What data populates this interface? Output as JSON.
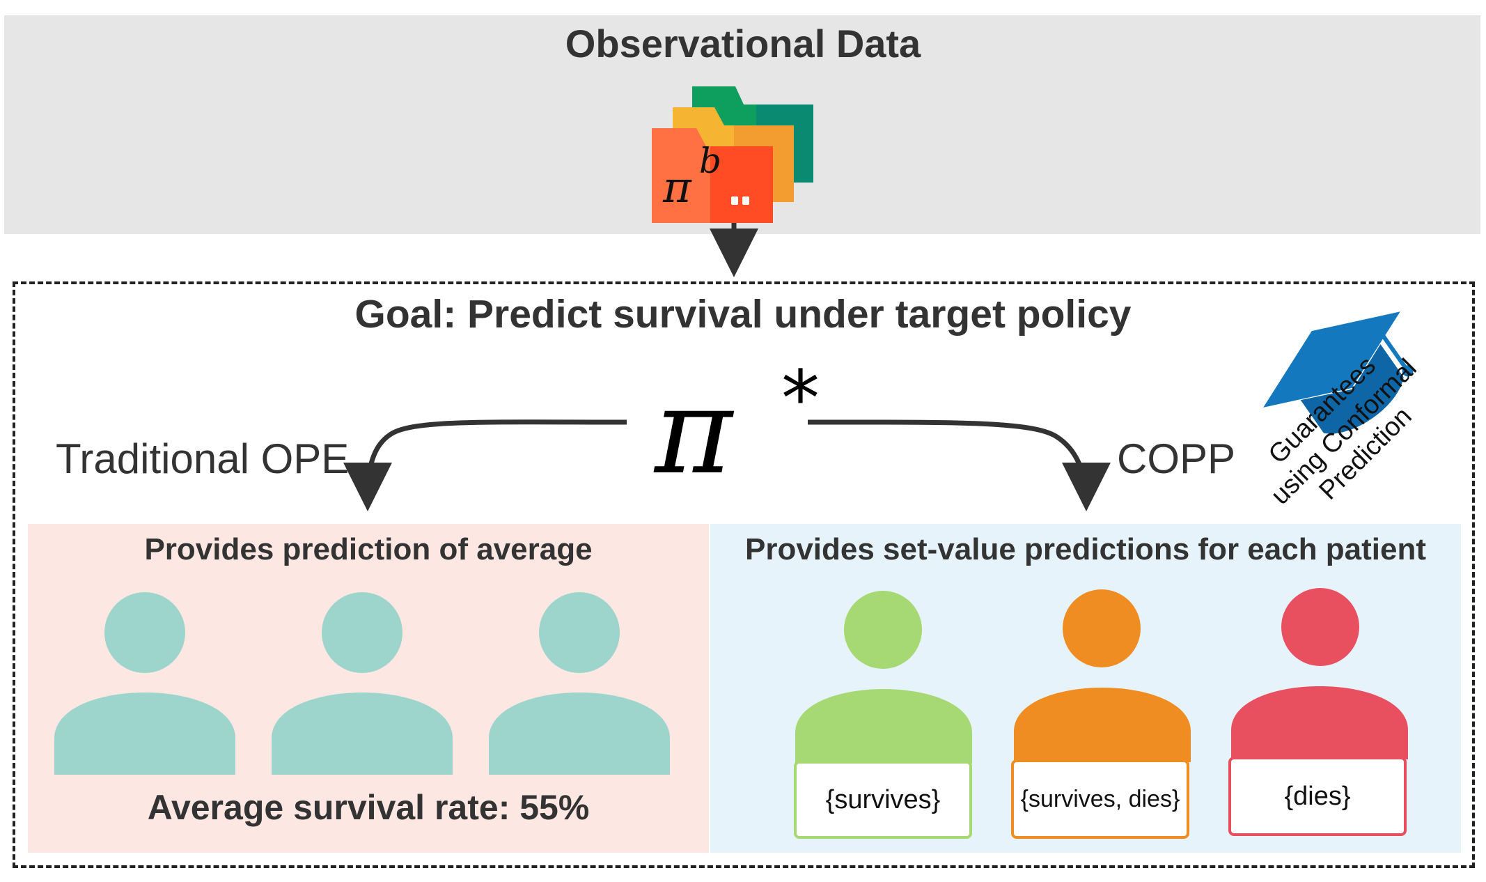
{
  "observational": {
    "title": "Observational Data",
    "folder_symbol": "π",
    "folder_superscript": "b",
    "folder_colors": [
      "#0e9f5f",
      "#f5b431",
      "#ff7043"
    ]
  },
  "goal": {
    "title": "Goal: Predict survival under target policy",
    "policy_symbol": "π",
    "policy_superscript": "*"
  },
  "methods": {
    "left_label": "Traditional OPE",
    "right_label": "COPP"
  },
  "guarantee": {
    "icon": "graduation-cap-icon",
    "lines": [
      "Guarantees",
      "using Conformal",
      "Prediction"
    ],
    "color": "#1478be"
  },
  "left_panel": {
    "heading": "Provides prediction of average",
    "avg_text": "Average survival rate: 55%",
    "person_color": "#9dd5cc"
  },
  "right_panel": {
    "heading": "Provides set-value predictions for each patient",
    "patients": [
      {
        "set": "{survives}",
        "color": "#a6d974"
      },
      {
        "set": "{survives, dies}",
        "color": "#ef8d22"
      },
      {
        "set": "{dies}",
        "color": "#e8505f"
      }
    ]
  }
}
